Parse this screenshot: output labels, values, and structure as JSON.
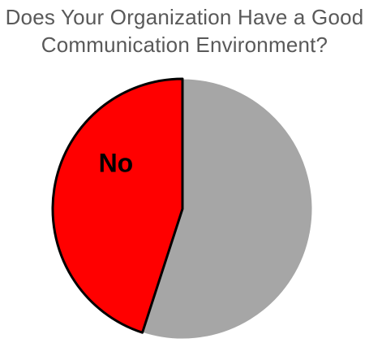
{
  "chart_data": {
    "type": "pie",
    "title_lines": [
      "Does Your Organization Have a Good",
      "Communication Environment?"
    ],
    "slices": [
      {
        "label": "",
        "value": 55,
        "color": "#a6a6a6"
      },
      {
        "label": "No",
        "value": 45,
        "color": "#ff0000"
      }
    ],
    "start_angle_deg": 0,
    "legend": "none",
    "stroke_color": "#000000"
  }
}
